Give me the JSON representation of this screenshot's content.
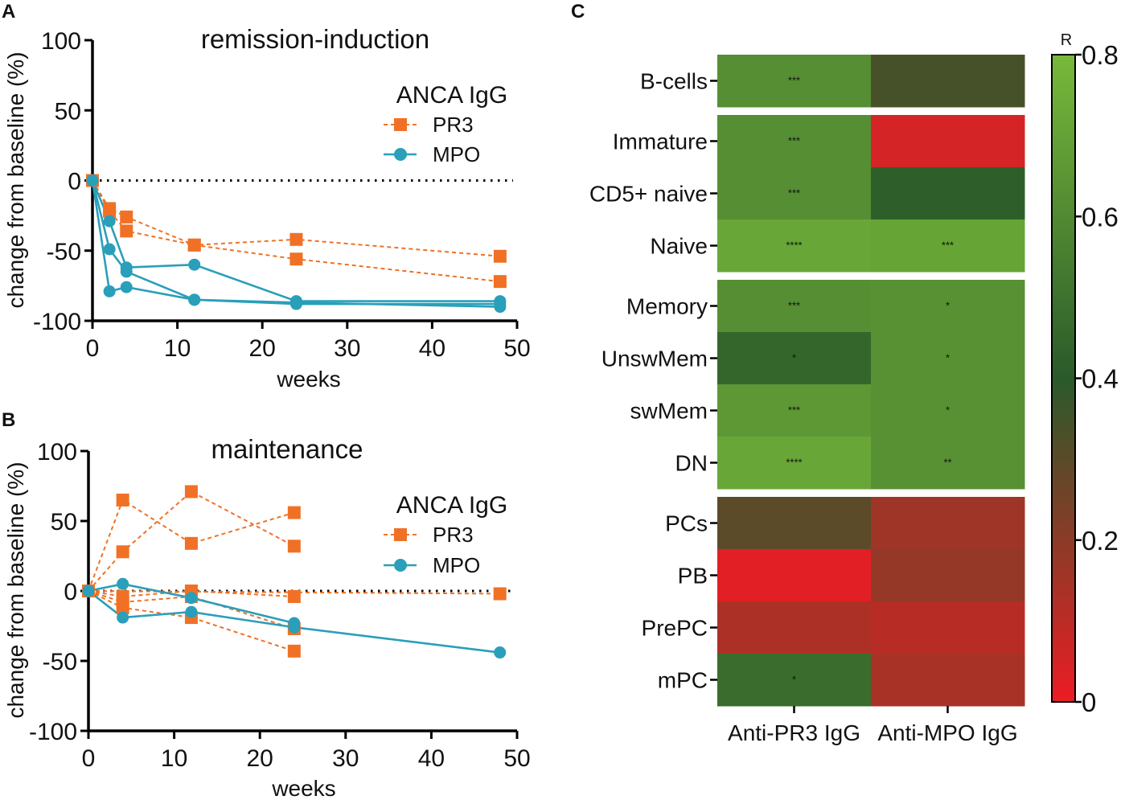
{
  "chart_data": [
    {
      "panel": "A",
      "type": "line",
      "title": "remission-induction",
      "xlabel": "weeks",
      "ylabel": "change from baseline (%)",
      "xlim": [
        0,
        50
      ],
      "ylim": [
        -100,
        100
      ],
      "xticks": [
        "0",
        "10",
        "20",
        "30",
        "40",
        "50"
      ],
      "yticks": [
        "100",
        "50",
        "0",
        "-50",
        "-100"
      ],
      "reference_line": 0,
      "legend": {
        "title": "ANCA IgG",
        "entries": [
          "PR3",
          "MPO"
        ],
        "position": "top-right"
      },
      "series": [
        {
          "name": "PR3",
          "group": "PR3",
          "color": "#f07125",
          "style": "dashed",
          "marker": "square",
          "points": [
            [
              0,
              0
            ],
            [
              2,
              -20
            ],
            [
              4,
              -26
            ],
            [
              12,
              -46
            ],
            [
              24,
              -42
            ],
            [
              48,
              -54
            ]
          ]
        },
        {
          "name": "PR3",
          "group": "PR3",
          "color": "#f07125",
          "style": "dashed",
          "marker": "square",
          "points": [
            [
              0,
              0
            ],
            [
              2,
              -22
            ],
            [
              4,
              -36
            ],
            [
              12,
              -46
            ],
            [
              24,
              -56
            ],
            [
              48,
              -72
            ]
          ]
        },
        {
          "name": "MPO",
          "group": "MPO",
          "color": "#2a9fba",
          "style": "solid",
          "marker": "circle",
          "points": [
            [
              0,
              0
            ],
            [
              2,
              -29
            ],
            [
              4,
              -62
            ],
            [
              12,
              -60
            ],
            [
              24,
              -86
            ],
            [
              48,
              -86
            ]
          ]
        },
        {
          "name": "MPO",
          "group": "MPO",
          "color": "#2a9fba",
          "style": "solid",
          "marker": "circle",
          "points": [
            [
              0,
              0
            ],
            [
              2,
              -49
            ],
            [
              4,
              -65
            ],
            [
              12,
              -85
            ],
            [
              24,
              -88
            ],
            [
              48,
              -88
            ]
          ]
        },
        {
          "name": "MPO",
          "group": "MPO",
          "color": "#2a9fba",
          "style": "solid",
          "marker": "circle",
          "points": [
            [
              0,
              0
            ],
            [
              2,
              -79
            ],
            [
              4,
              -76
            ],
            [
              12,
              -85
            ],
            [
              24,
              -87
            ],
            [
              48,
              -90
            ]
          ]
        }
      ]
    },
    {
      "panel": "B",
      "type": "line",
      "title": "maintenance",
      "xlabel": "weeks",
      "ylabel": "change from baseline (%)",
      "xlim": [
        0,
        50
      ],
      "ylim": [
        -100,
        100
      ],
      "xticks": [
        "0",
        "10",
        "20",
        "30",
        "40",
        "50"
      ],
      "yticks": [
        "100",
        "50",
        "0",
        "-50",
        "-100"
      ],
      "reference_line": 0,
      "legend": {
        "title": "ANCA IgG",
        "entries": [
          "PR3",
          "MPO"
        ],
        "position": "top-right"
      },
      "series": [
        {
          "name": "PR3",
          "group": "PR3",
          "color": "#f07125",
          "style": "dashed",
          "marker": "square",
          "points": [
            [
              0,
              0
            ],
            [
              4,
              65
            ],
            [
              12,
              34
            ],
            [
              24,
              56
            ]
          ]
        },
        {
          "name": "PR3",
          "group": "PR3",
          "color": "#f07125",
          "style": "dashed",
          "marker": "square",
          "points": [
            [
              0,
              0
            ],
            [
              4,
              28
            ],
            [
              12,
              71
            ],
            [
              24,
              32
            ]
          ]
        },
        {
          "name": "PR3",
          "group": "PR3",
          "color": "#f07125",
          "style": "dashed",
          "marker": "square",
          "points": [
            [
              0,
              0
            ],
            [
              4,
              -4
            ],
            [
              12,
              0
            ],
            [
              24,
              -4
            ]
          ]
        },
        {
          "name": "PR3",
          "group": "PR3",
          "color": "#f07125",
          "style": "dashed",
          "marker": "square",
          "points": [
            [
              0,
              0
            ],
            [
              4,
              -8
            ],
            [
              12,
              -4
            ],
            [
              24,
              -27
            ]
          ]
        },
        {
          "name": "PR3",
          "group": "PR3",
          "color": "#f07125",
          "style": "dashed",
          "marker": "square",
          "points": [
            [
              0,
              0
            ],
            [
              4,
              -12
            ],
            [
              12,
              -19
            ],
            [
              24,
              -43
            ]
          ]
        },
        {
          "name": "PR3",
          "group": "PR3",
          "color": "#f07125",
          "style": "dashed",
          "marker": "square",
          "points": [
            [
              0,
              0
            ],
            [
              48,
              -2
            ]
          ]
        },
        {
          "name": "MPO",
          "group": "MPO",
          "color": "#2a9fba",
          "style": "solid",
          "marker": "circle",
          "points": [
            [
              0,
              0
            ],
            [
              4,
              5
            ],
            [
              12,
              -5
            ],
            [
              24,
              -23
            ]
          ]
        },
        {
          "name": "MPO",
          "group": "MPO",
          "color": "#2a9fba",
          "style": "solid",
          "marker": "circle",
          "points": [
            [
              0,
              0
            ],
            [
              4,
              -19
            ],
            [
              12,
              -15
            ],
            [
              24,
              -26
            ],
            [
              48,
              -44
            ]
          ]
        }
      ]
    },
    {
      "panel": "C",
      "type": "heatmap",
      "columns": [
        "Anti-PR3 IgG",
        "Anti-MPO IgG"
      ],
      "rows": [
        "B-cells",
        "Immature",
        "CD5+ naive",
        "Naive",
        "Memory",
        "UnswMem",
        "swMem",
        "DN",
        "PCs",
        "PB",
        "PrePC",
        "mPC"
      ],
      "row_groups": [
        [
          "B-cells"
        ],
        [
          "Immature",
          "CD5+ naive",
          "Naive"
        ],
        [
          "Memory",
          "UnswMem",
          "swMem",
          "DN"
        ],
        [
          "PCs",
          "PB",
          "PrePC",
          "mPC"
        ]
      ],
      "values": [
        [
          0.62,
          0.34
        ],
        [
          0.62,
          0.05
        ],
        [
          0.62,
          0.42
        ],
        [
          0.72,
          0.71
        ],
        [
          0.62,
          0.63
        ],
        [
          0.45,
          0.63
        ],
        [
          0.66,
          0.63
        ],
        [
          0.72,
          0.63
        ],
        [
          0.3,
          0.16
        ],
        [
          0.02,
          0.18
        ],
        [
          0.13,
          0.11
        ],
        [
          0.48,
          0.14
        ]
      ],
      "significance": [
        [
          "***",
          ""
        ],
        [
          "***",
          ""
        ],
        [
          "***",
          ""
        ],
        [
          "****",
          "***"
        ],
        [
          "***",
          "*"
        ],
        [
          "*",
          "*"
        ],
        [
          "***",
          "*"
        ],
        [
          "****",
          "**"
        ],
        [
          "",
          ""
        ],
        [
          "",
          ""
        ],
        [
          "",
          ""
        ],
        [
          "*",
          ""
        ]
      ],
      "colorbar": {
        "label": "R",
        "min": 0,
        "max": 0.8,
        "ticks": [
          "0.8",
          "0.6",
          "0.4",
          "0.2",
          "0"
        ],
        "tick_values": [
          0.8,
          0.6,
          0.4,
          0.2,
          0
        ],
        "scale_colors": [
          "#ec1c24",
          "#2a5a2a",
          "#78b93a"
        ]
      }
    }
  ],
  "panel_labels": [
    "A",
    "B",
    "C"
  ]
}
